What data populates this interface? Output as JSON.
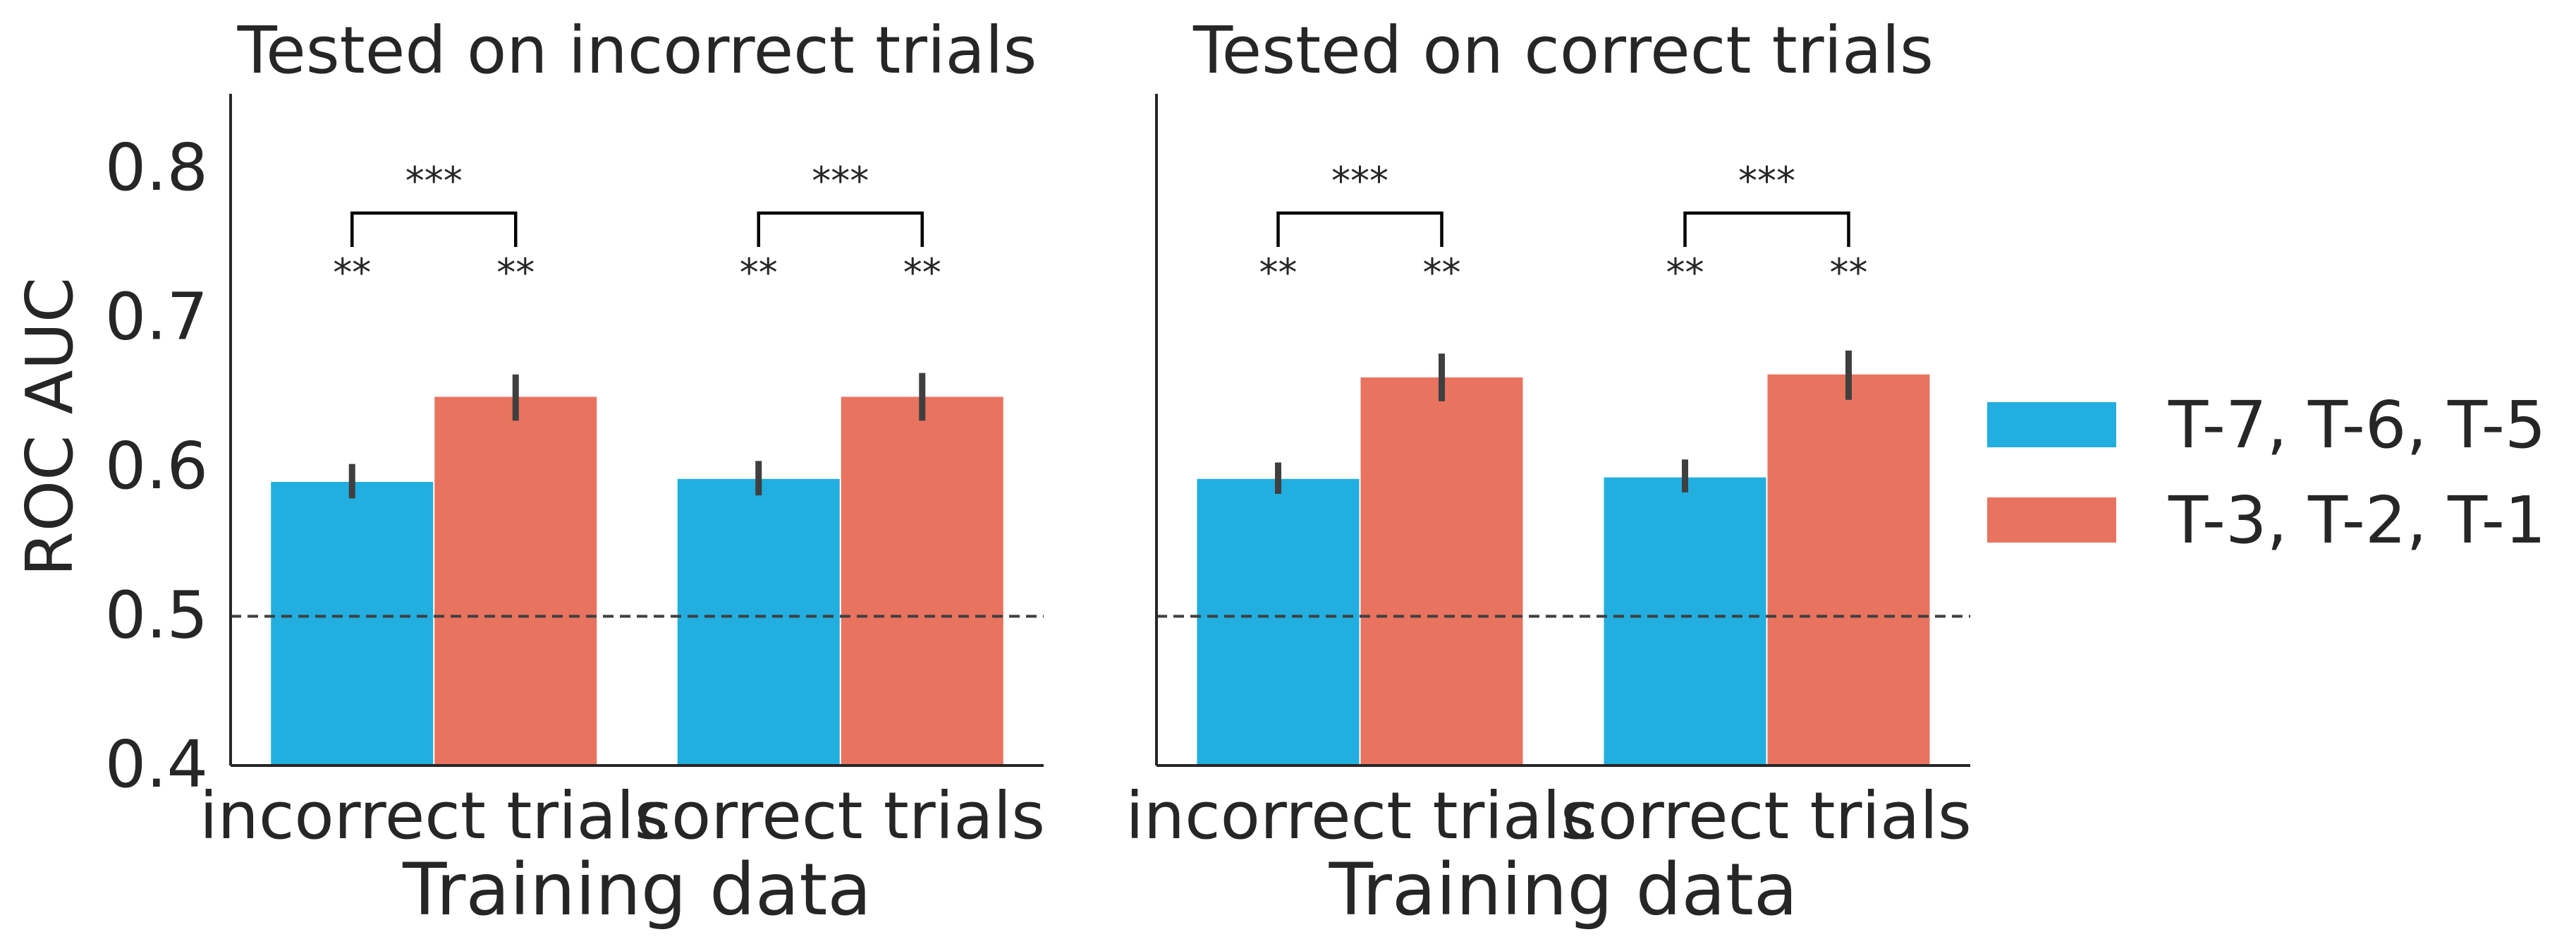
{
  "figure": {
    "ylabel": "ROC AUC"
  },
  "legend": {
    "placement": "right",
    "entries": [
      {
        "label": "T-7, T-6, T-5",
        "color": "#22AEDF"
      },
      {
        "label": "T-3, T-2, T-1",
        "color": "#E8735F"
      }
    ]
  },
  "chart_data": [
    {
      "type": "bar",
      "title": "Tested on incorrect trials",
      "xlabel": "Training data",
      "ylabel": "ROC AUC",
      "categories": [
        "incorrect trials",
        "correct trials"
      ],
      "ylim": [
        0.4,
        0.85
      ],
      "yticks": [
        0.4,
        0.5,
        0.6,
        0.7,
        0.8
      ],
      "ytick_labels": [
        "0.4",
        "0.5",
        "0.6",
        "0.7",
        "0.8"
      ],
      "reference_line": 0.5,
      "series": [
        {
          "name": "T-7, T-6, T-5",
          "color": "#22AEDF",
          "values": [
            0.59,
            0.592
          ],
          "ci_low": [
            0.579,
            0.581
          ],
          "ci_high": [
            0.602,
            0.604
          ],
          "sig_label": [
            "**",
            "**"
          ]
        },
        {
          "name": "T-3, T-2, T-1",
          "color": "#E8735F",
          "values": [
            0.647,
            0.647
          ],
          "ci_low": [
            0.631,
            0.631
          ],
          "ci_high": [
            0.662,
            0.663
          ],
          "sig_label": [
            "**",
            "**"
          ]
        }
      ],
      "brackets": [
        {
          "category": 0,
          "label": "***"
        },
        {
          "category": 1,
          "label": "***"
        }
      ],
      "grid": false
    },
    {
      "type": "bar",
      "title": "Tested on correct trials",
      "xlabel": "Training data",
      "ylabel": "",
      "categories": [
        "incorrect trials",
        "correct trials"
      ],
      "ylim": [
        0.4,
        0.85
      ],
      "yticks": [
        0.4,
        0.5,
        0.6,
        0.7,
        0.8
      ],
      "ytick_labels": [],
      "reference_line": 0.5,
      "series": [
        {
          "name": "T-7, T-6, T-5",
          "color": "#22AEDF",
          "values": [
            0.592,
            0.593
          ],
          "ci_low": [
            0.582,
            0.583
          ],
          "ci_high": [
            0.603,
            0.605
          ],
          "sig_label": [
            "**",
            "**"
          ]
        },
        {
          "name": "T-3, T-2, T-1",
          "color": "#E8735F",
          "values": [
            0.66,
            0.662
          ],
          "ci_low": [
            0.644,
            0.645
          ],
          "ci_high": [
            0.676,
            0.678
          ],
          "sig_label": [
            "**",
            "**"
          ]
        }
      ],
      "brackets": [
        {
          "category": 0,
          "label": "***"
        },
        {
          "category": 1,
          "label": "***"
        }
      ],
      "grid": false
    }
  ]
}
